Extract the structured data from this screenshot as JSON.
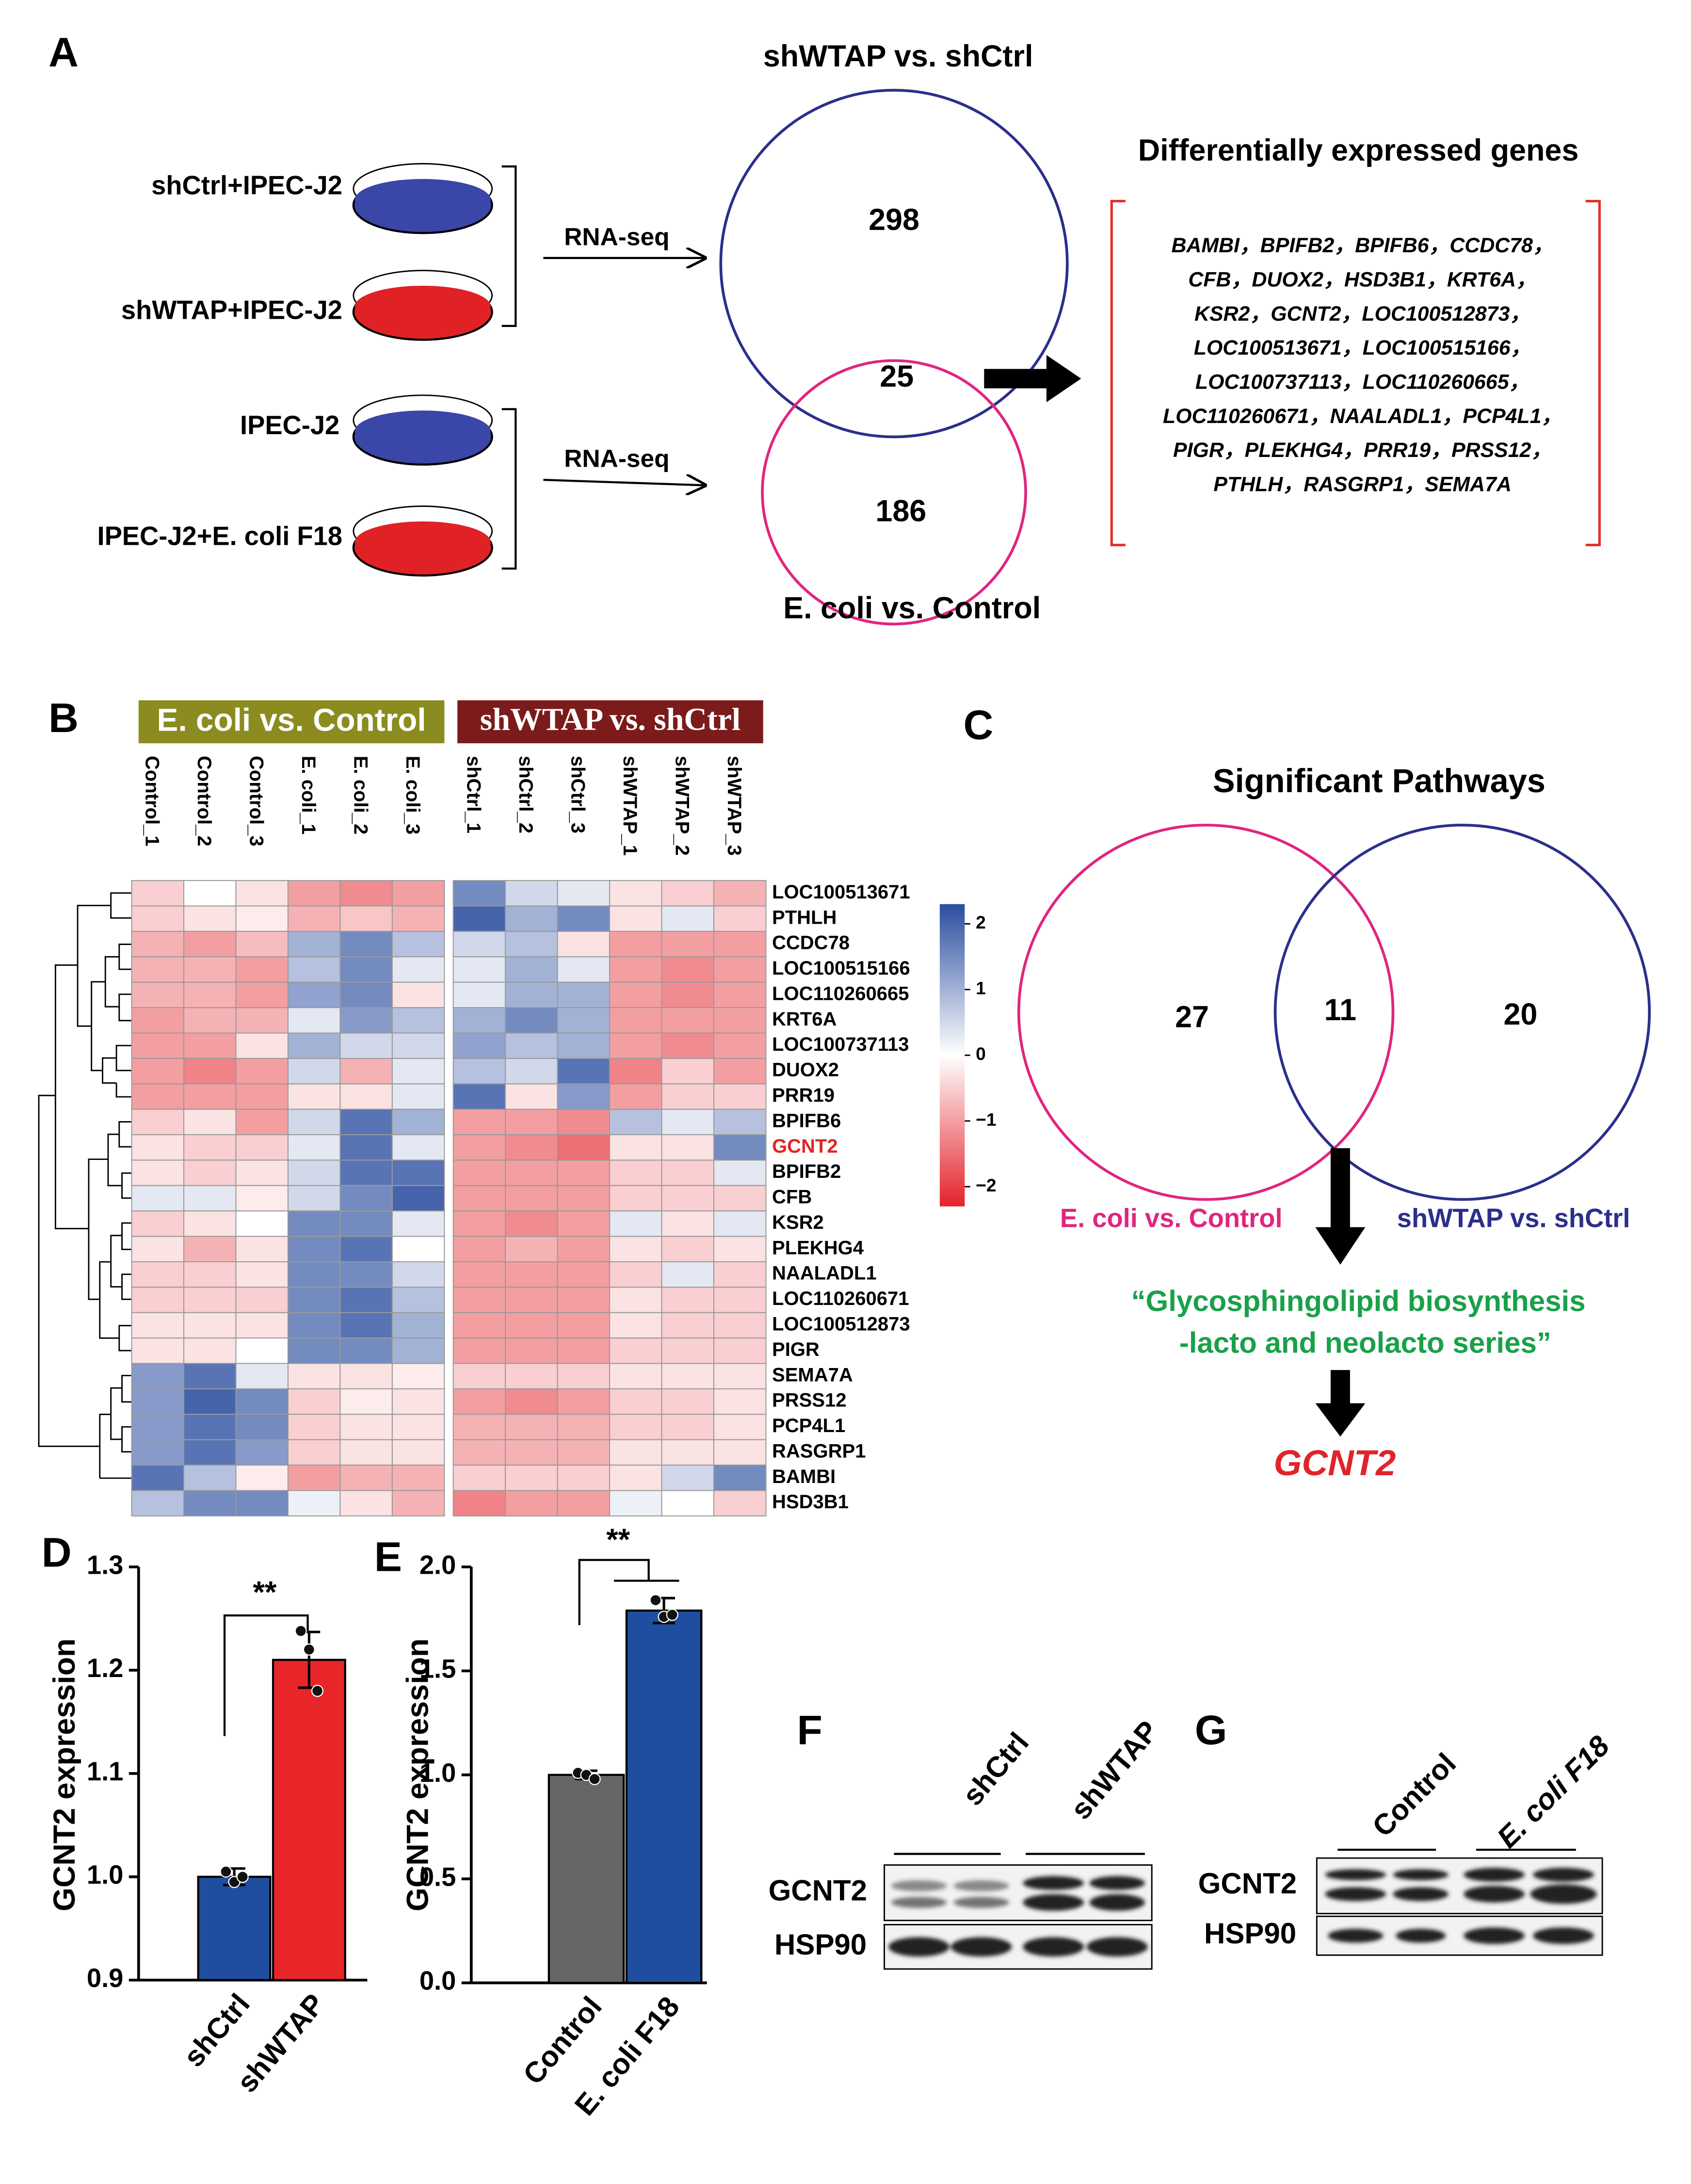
{
  "panel_labels": [
    "A",
    "B",
    "C",
    "D",
    "E",
    "F",
    "G"
  ],
  "panel_a": {
    "samples": [
      "shCtrl+IPEC-J2",
      "shWTAP+IPEC-J2",
      "IPEC-J2",
      "IPEC-J2+E. coli F18"
    ],
    "methods": [
      "RNA-seq",
      "RNA-seq"
    ],
    "venn": {
      "set1": "shWTAP vs. shCtrl",
      "set2": "E. coli vs. Control",
      "only1": 298,
      "both": 25,
      "only2": 186
    },
    "genes_title": "Differentially expressed genes",
    "genes": [
      "BAMBI，BPIFB2，BPIFB6，CCDC78，",
      "CFB，DUOX2，HSD3B1，KRT6A，",
      "KSR2，GCNT2，LOC100512873，",
      "LOC100513671，LOC100515166，",
      "LOC100737113，LOC110260665，",
      "LOC110260671，NAALADL1，PCP4L1，",
      "PIGR，PLEKHG4，PRR19，PRSS12，",
      "PTHLH，RASGRP1，SEMA7A"
    ]
  },
  "panel_c": {
    "title": "Significant Pathways",
    "venn": {
      "set1": "E. coli vs. Control",
      "set2": "shWTAP vs. shCtrl",
      "only1": 27,
      "both": 11,
      "only2": 20
    },
    "pathway": [
      "“Glycosphingolipid biosynthesis",
      "-lacto and neolacto series”"
    ],
    "gene": "GCNT2"
  },
  "chart_data": [
    {
      "type": "heatmap",
      "groups": [
        "E. coli vs. Control",
        "shWTAP vs. shCtrl"
      ],
      "group_colors": [
        "#8b8b1f",
        "#7b1b1b"
      ],
      "columns": [
        "Control_1",
        "Control_2",
        "Control_3",
        "E. coli_1",
        "E. coli_2",
        "E. coli_3",
        "shCtrl_1",
        "shCtrl_2",
        "shCtrl_3",
        "shWTAP_1",
        "shWTAP_2",
        "shWTAP_3"
      ],
      "rows": [
        "LOC100513671",
        "PTHLH",
        "CCDC78",
        "LOC100515166",
        "LOC110260665",
        "KRT6A",
        "LOC100737113",
        "DUOX2",
        "PRR19",
        "BPIFB6",
        "GCNT2",
        "BPIFB2",
        "CFB",
        "KSR2",
        "PLEKHG4",
        "NAALADL1",
        "LOC110260671",
        "LOC100512873",
        "PIGR",
        "SEMA7A",
        "PRSS12",
        "PCP4L1",
        "RASGRP1",
        "BAMBI",
        "HSD3B1"
      ],
      "highlight": "GCNT2",
      "highlight_color": "#e02424",
      "colors": [
        "#e3232a",
        "#ffffff",
        "#2a4d9f"
      ],
      "zlim": [
        -2.3,
        2.3
      ],
      "zticks": [
        2,
        1,
        0,
        {
          "value": -1,
          "label": "−1"
        },
        {
          "value": -2,
          "label": "−2"
        }
      ],
      "values": [
        [
          -0.5,
          0,
          -0.3,
          -1,
          -1.2,
          -1,
          1.5,
          0.5,
          0.3,
          -0.3,
          -0.5,
          -0.8
        ],
        [
          -0.5,
          -0.3,
          -0.2,
          -0.8,
          -0.6,
          -0.8,
          2,
          1,
          1.5,
          -0.3,
          0.3,
          -0.5
        ],
        [
          -0.8,
          -1,
          -0.7,
          1,
          1.5,
          0.8,
          0.5,
          0.8,
          -0.3,
          -1,
          -1,
          -1
        ],
        [
          -0.8,
          -0.8,
          -1,
          0.8,
          1.5,
          0.3,
          0.3,
          1,
          0.3,
          -1,
          -1.2,
          -1
        ],
        [
          -0.8,
          -0.8,
          -1,
          1.2,
          1.5,
          -0.3,
          0.3,
          1,
          1,
          -1,
          -1.2,
          -1
        ],
        [
          -1,
          -0.8,
          -0.8,
          0.3,
          1.3,
          0.8,
          1,
          1.5,
          1,
          -1,
          -1,
          -1
        ],
        [
          -1,
          -1,
          -0.3,
          1,
          0.5,
          0.5,
          1.2,
          0.8,
          1,
          -1,
          -1.2,
          -1
        ],
        [
          -1,
          -1.3,
          -1,
          0.5,
          -0.8,
          0.3,
          0.8,
          0.5,
          1.8,
          -1.3,
          -0.5,
          -1
        ],
        [
          -1,
          -1,
          -1,
          -0.3,
          -0.3,
          0.3,
          1.8,
          -0.3,
          1.3,
          -1,
          -0.5,
          -0.5
        ],
        [
          -0.5,
          -0.3,
          -1,
          0.5,
          1.8,
          1,
          -1,
          -1,
          -1.2,
          0.8,
          0.3,
          0.8
        ],
        [
          -0.3,
          -0.5,
          -0.5,
          0.3,
          1.8,
          0.3,
          -1,
          -1.2,
          -1.5,
          -0.3,
          -0.3,
          1.5
        ],
        [
          -0.3,
          -0.5,
          -0.3,
          0.5,
          1.8,
          1.8,
          -1,
          -1,
          -1,
          -0.5,
          -0.5,
          0.3
        ],
        [
          0.3,
          0.3,
          -0.2,
          0.5,
          1.5,
          2,
          -1,
          -1,
          -1,
          -0.5,
          -0.5,
          -0.5
        ],
        [
          -0.5,
          -0.3,
          0,
          1.5,
          1.5,
          0.3,
          -1,
          -1.2,
          -1,
          0.3,
          -0.3,
          0.3
        ],
        [
          -0.3,
          -0.8,
          -0.3,
          1.5,
          1.8,
          0,
          -1,
          -0.8,
          -1,
          -0.3,
          -0.5,
          -0.3
        ],
        [
          -0.5,
          -0.5,
          -0.3,
          1.5,
          1.5,
          0.5,
          -1,
          -1,
          -1,
          -0.5,
          0.3,
          -0.5
        ],
        [
          -0.5,
          -0.5,
          -0.5,
          1.5,
          1.8,
          0.8,
          -1,
          -1,
          -1,
          -0.3,
          -0.5,
          -0.5
        ],
        [
          -0.3,
          -0.3,
          -0.3,
          1.5,
          1.8,
          1,
          -1,
          -1,
          -1,
          -0.3,
          -0.5,
          -0.5
        ],
        [
          -0.3,
          -0.3,
          0,
          1.5,
          1.5,
          1,
          -1,
          -1,
          -1,
          -0.5,
          -0.5,
          -0.5
        ],
        [
          1.3,
          1.8,
          0.3,
          -0.3,
          -0.3,
          -0.2,
          -0.5,
          -0.5,
          -0.5,
          -0.3,
          -0.3,
          -0.3
        ],
        [
          1.3,
          2,
          1.5,
          -0.5,
          -0.2,
          -0.3,
          -1,
          -1.2,
          -1,
          -0.5,
          -0.5,
          -0.3
        ],
        [
          1.3,
          1.8,
          1.5,
          -0.5,
          -0.3,
          -0.3,
          -0.8,
          -0.8,
          -0.8,
          -0.5,
          -0.5,
          -0.3
        ],
        [
          1.3,
          1.8,
          1.3,
          -0.5,
          -0.3,
          -0.3,
          -0.8,
          -0.8,
          -0.8,
          -0.3,
          -0.3,
          -0.3
        ],
        [
          1.8,
          0.8,
          -0.2,
          -1,
          -0.8,
          -0.8,
          -0.5,
          -0.5,
          -0.5,
          -0.3,
          0.5,
          1.5
        ],
        [
          0.8,
          1.5,
          1.5,
          0.2,
          -0.3,
          -0.8,
          -1.3,
          -1,
          -1,
          0.2,
          0,
          -0.5
        ]
      ]
    },
    {
      "type": "bar",
      "ylabel": "GCNT2 expression",
      "categories": [
        "shCtrl",
        "shWTAP"
      ],
      "values": [
        1.0,
        1.21
      ],
      "errors": [
        0.008,
        0.027
      ],
      "colors": [
        "#1f4e9e",
        "#e8262a"
      ],
      "points": [
        [
          1.005,
          0.995,
          1.0
        ],
        [
          1.238,
          1.22,
          1.18
        ]
      ],
      "ylim": [
        0.9,
        1.3
      ],
      "yticks": [
        0.9,
        {
          "value": 1.0,
          "label": "1.0"
        },
        1.1,
        1.2,
        1.3
      ],
      "annotation": "**"
    },
    {
      "type": "bar",
      "ylabel": "GCNT2 expression",
      "categories": [
        "Control",
        "E. coli F18"
      ],
      "values": [
        1.0,
        1.79
      ],
      "errors": [
        0.02,
        0.06
      ],
      "colors": [
        "#666666",
        "#1f4ea0"
      ],
      "points": [
        [
          1.01,
          1.0,
          0.98
        ],
        [
          1.84,
          1.76,
          1.77
        ]
      ],
      "ylim": [
        0,
        2
      ],
      "yticks": [
        {
          "value": 0,
          "label": "0.0"
        },
        0.5,
        {
          "value": 1,
          "label": "1.0"
        },
        1.5,
        {
          "value": 2,
          "label": "2.0"
        }
      ],
      "annotation": "**"
    }
  ],
  "panel_f": {
    "lanes": [
      "shCtrl",
      "shWTAP"
    ],
    "proteins": [
      "GCNT2",
      "HSP90"
    ]
  },
  "panel_g": {
    "lanes": [
      "Control",
      "E. coli F18"
    ],
    "proteins": [
      "GCNT2",
      "HSP90"
    ]
  }
}
